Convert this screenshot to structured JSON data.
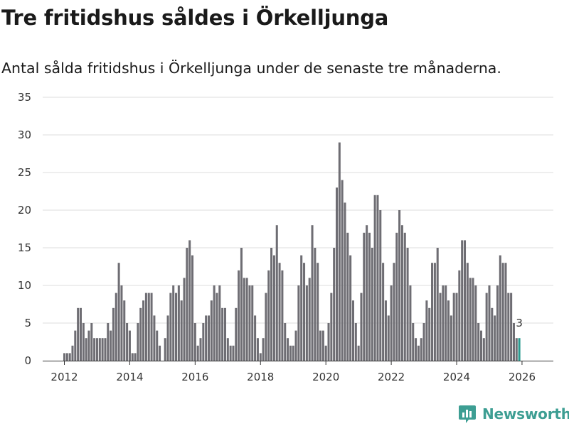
{
  "header": {
    "title": "Tre fritidshus såldes i Örkelljunga",
    "subtitle": "Antal sålda fritidshus i Örkelljunga under de senaste tre månaderna."
  },
  "brand": {
    "name": "Newsworthy",
    "color": "#3d9e93"
  },
  "colors": {
    "bar": "#6e6d73",
    "highlight": "#2a9a8f",
    "grid": "#dddddd",
    "axis": "#333333"
  },
  "chart_data": {
    "type": "bar",
    "title": "Tre fritidshus såldes i Örkelljunga",
    "subtitle": "Antal sålda fritidshus i Örkelljunga under de senaste tre månaderna.",
    "xlabel": "",
    "ylabel": "",
    "ylim": [
      0,
      35
    ],
    "yticks": [
      0,
      5,
      10,
      15,
      20,
      25,
      30,
      35
    ],
    "xticks": [
      2012,
      2014,
      2016,
      2018,
      2020,
      2022,
      2024,
      2026
    ],
    "x_start": "2011-06",
    "x_end": "2026-03",
    "highlight_label": "3",
    "series": [
      {
        "name": "Antal sålda fritidshus",
        "values": [
          0,
          0,
          0,
          0,
          0,
          0,
          0,
          1,
          1,
          1,
          2,
          4,
          7,
          7,
          5,
          3,
          4,
          5,
          3,
          3,
          3,
          3,
          3,
          5,
          4,
          7,
          9,
          13,
          10,
          8,
          5,
          4,
          1,
          1,
          5,
          7,
          8,
          9,
          9,
          9,
          6,
          4,
          2,
          0,
          3,
          6,
          9,
          10,
          9,
          10,
          8,
          11,
          15,
          16,
          14,
          5,
          2,
          3,
          5,
          6,
          6,
          8,
          10,
          9,
          10,
          7,
          7,
          3,
          2,
          2,
          7,
          12,
          15,
          11,
          11,
          10,
          10,
          6,
          3,
          1,
          3,
          9,
          12,
          15,
          14,
          18,
          13,
          12,
          5,
          3,
          2,
          2,
          4,
          10,
          14,
          13,
          10,
          11,
          18,
          15,
          13,
          4,
          4,
          2,
          5,
          9,
          15,
          23,
          29,
          24,
          21,
          17,
          14,
          8,
          5,
          2,
          9,
          17,
          18,
          17,
          15,
          22,
          22,
          20,
          13,
          8,
          6,
          10,
          13,
          17,
          20,
          18,
          17,
          15,
          10,
          5,
          3,
          2,
          3,
          5,
          8,
          7,
          13,
          13,
          15,
          9,
          10,
          10,
          8,
          6,
          9,
          9,
          12,
          16,
          16,
          13,
          11,
          11,
          10,
          5,
          4,
          3,
          9,
          10,
          7,
          6,
          10,
          14,
          13,
          13,
          9,
          9,
          5,
          3,
          3
        ]
      }
    ]
  }
}
